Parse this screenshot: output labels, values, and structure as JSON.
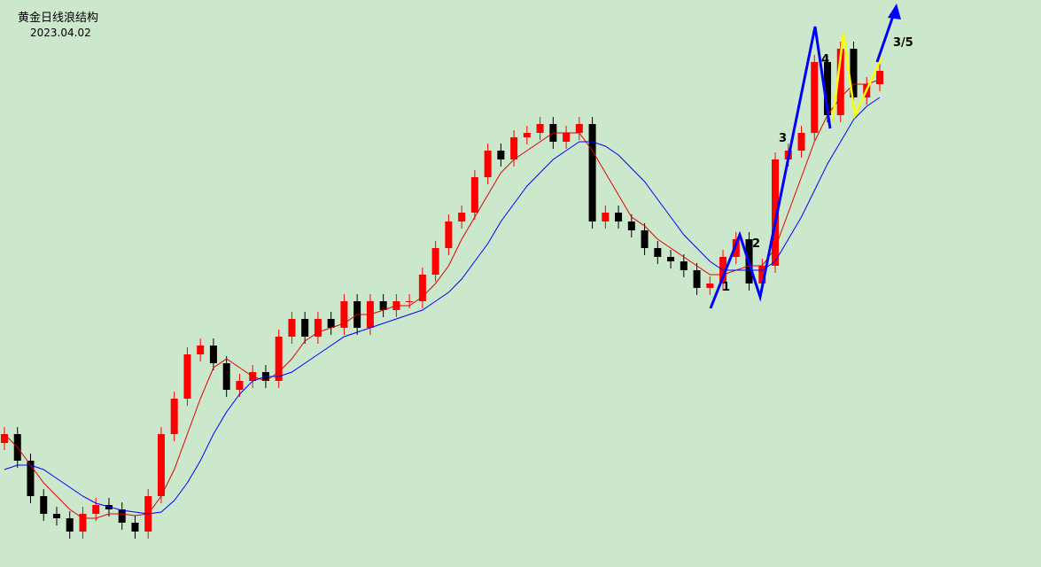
{
  "chart_data": {
    "type": "candlestick",
    "title": "黄金日线浪结构",
    "subtitle": "2023.04.02",
    "ylim": [
      0,
      640
    ],
    "up_color": "#ff0000",
    "down_color": "#000000",
    "open": [
      140,
      150,
      120,
      80,
      60,
      55,
      40,
      60,
      70,
      65,
      50,
      40,
      80,
      150,
      190,
      240,
      250,
      230,
      200,
      210,
      220,
      210,
      260,
      280,
      260,
      280,
      270,
      300,
      270,
      300,
      290,
      300,
      300,
      330,
      360,
      390,
      400,
      440,
      470,
      460,
      485,
      490,
      500,
      480,
      490,
      500,
      390,
      400,
      390,
      380,
      360,
      350,
      345,
      335,
      315,
      320,
      350,
      370,
      320,
      340,
      460,
      470,
      490,
      570,
      510,
      585,
      530,
      545
    ],
    "high": [
      158,
      158,
      128,
      88,
      68,
      63,
      68,
      78,
      78,
      73,
      58,
      88,
      158,
      198,
      248,
      258,
      258,
      238,
      218,
      228,
      228,
      268,
      288,
      288,
      288,
      288,
      308,
      308,
      308,
      308,
      308,
      308,
      338,
      368,
      398,
      408,
      448,
      478,
      478,
      493,
      498,
      508,
      508,
      498,
      508,
      508,
      408,
      408,
      398,
      388,
      368,
      358,
      353,
      343,
      328,
      358,
      378,
      378,
      348,
      468,
      478,
      498,
      578,
      578,
      593,
      593,
      553,
      568
    ],
    "low": [
      132,
      112,
      72,
      52,
      47,
      32,
      32,
      52,
      57,
      42,
      32,
      32,
      72,
      142,
      182,
      232,
      222,
      192,
      192,
      202,
      202,
      202,
      252,
      252,
      252,
      262,
      262,
      262,
      262,
      282,
      282,
      292,
      292,
      322,
      352,
      382,
      392,
      432,
      452,
      452,
      477,
      482,
      472,
      472,
      482,
      382,
      382,
      382,
      372,
      352,
      342,
      337,
      327,
      307,
      307,
      312,
      342,
      312,
      312,
      332,
      452,
      462,
      482,
      502,
      502,
      522,
      522,
      537
    ],
    "close": [
      150,
      120,
      80,
      60,
      55,
      40,
      60,
      70,
      65,
      50,
      40,
      80,
      150,
      190,
      240,
      250,
      230,
      200,
      210,
      220,
      210,
      260,
      280,
      260,
      280,
      270,
      300,
      270,
      300,
      290,
      300,
      300,
      330,
      360,
      390,
      400,
      440,
      470,
      460,
      485,
      490,
      500,
      480,
      490,
      500,
      390,
      400,
      390,
      380,
      360,
      350,
      345,
      335,
      315,
      320,
      350,
      370,
      320,
      340,
      460,
      470,
      490,
      570,
      510,
      585,
      530,
      545,
      560
    ],
    "lines": [
      {
        "color": "#e00000",
        "values": [
          150,
          135,
          115,
          95,
          80,
          65,
          55,
          55,
          60,
          60,
          58,
          60,
          80,
          110,
          150,
          190,
          225,
          235,
          225,
          215,
          210,
          220,
          235,
          255,
          265,
          270,
          275,
          285,
          285,
          290,
          295,
          295,
          305,
          320,
          340,
          370,
          395,
          420,
          445,
          460,
          470,
          480,
          490,
          490,
          490,
          470,
          445,
          420,
          395,
          385,
          370,
          360,
          350,
          340,
          330,
          330,
          335,
          340,
          340,
          360,
          400,
          440,
          480,
          510,
          530,
          545,
          545,
          550
        ]
      },
      {
        "color": "#0000ff",
        "values": [
          110,
          115,
          115,
          110,
          100,
          90,
          80,
          72,
          68,
          64,
          62,
          60,
          62,
          75,
          95,
          120,
          150,
          175,
          195,
          210,
          215,
          215,
          220,
          230,
          240,
          250,
          260,
          265,
          270,
          275,
          280,
          285,
          290,
          300,
          310,
          325,
          345,
          365,
          390,
          410,
          430,
          445,
          460,
          470,
          480,
          480,
          475,
          465,
          450,
          435,
          415,
          395,
          375,
          360,
          345,
          335,
          335,
          335,
          335,
          345,
          370,
          395,
          425,
          455,
          480,
          505,
          520,
          530
        ]
      }
    ],
    "annotations": [
      "1",
      "2",
      "3",
      "4",
      "3/5"
    ]
  }
}
